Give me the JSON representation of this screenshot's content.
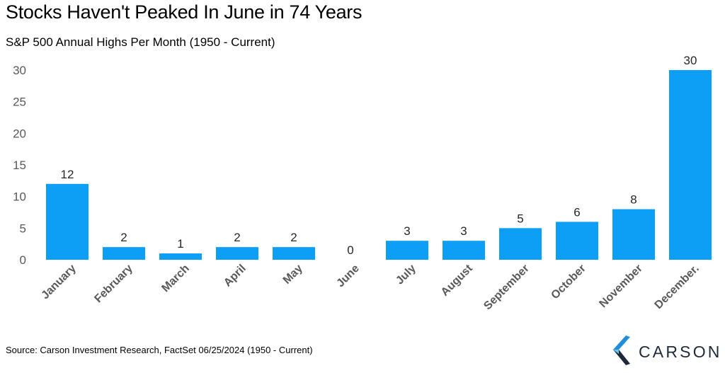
{
  "chart_data": {
    "type": "bar",
    "title": "Stocks Haven't Peaked In June in 74 Years",
    "subtitle": "S&P 500 Annual Highs Per Month (1950 - Current)",
    "categories": [
      "January",
      "February",
      "March",
      "April",
      "May",
      "June",
      "July",
      "August",
      "September",
      "October",
      "November",
      "December."
    ],
    "values": [
      12,
      2,
      1,
      2,
      2,
      0,
      3,
      3,
      5,
      6,
      8,
      30
    ],
    "yticks": [
      "0",
      "5",
      "10",
      "15",
      "20",
      "25",
      "30"
    ],
    "ylim": [
      0,
      30
    ],
    "bar_color": "#0d9ff5",
    "grid": false,
    "data_labels": true
  },
  "source": "Source: Carson Investment Research, FactSet 06/25/2024 (1950 - Current)",
  "logo": {
    "text": "CARSON",
    "icon": "carson-chevron-logo-icon"
  }
}
